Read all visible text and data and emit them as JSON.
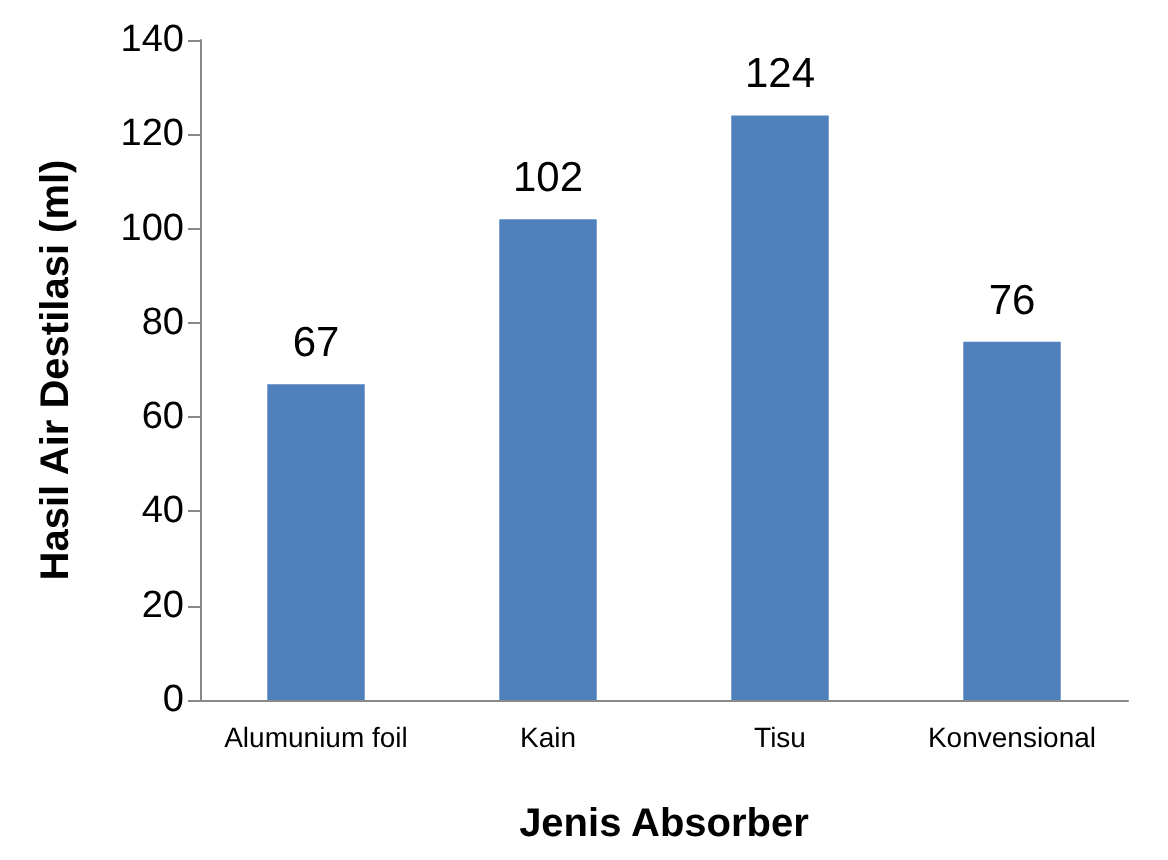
{
  "chart_data": {
    "type": "bar",
    "xlabel": "Jenis Absorber",
    "ylabel": "Hasil Air Destilasi (ml)",
    "categories": [
      "Alumunium foil",
      "Kain",
      "Tisu",
      "Konvensional"
    ],
    "values": [
      67,
      102,
      124,
      76
    ],
    "color": "#4f81bd",
    "ylim": [
      0,
      140
    ],
    "yticks": [
      0,
      20,
      40,
      60,
      80,
      100,
      120,
      140
    ],
    "grid": false,
    "data_labels": true
  }
}
